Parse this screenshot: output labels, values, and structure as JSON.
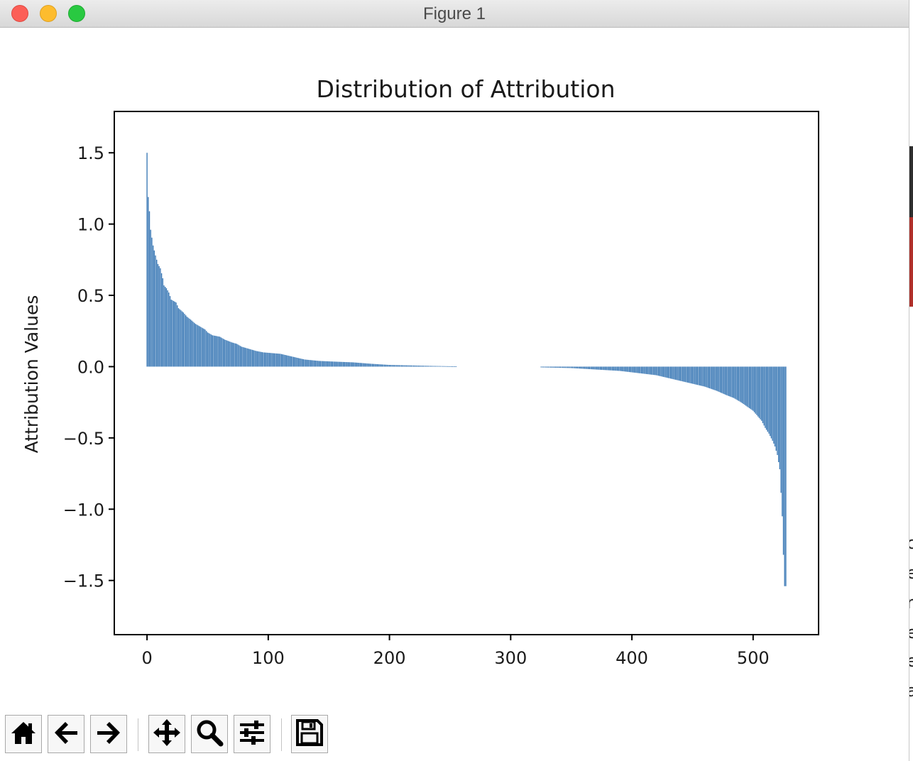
{
  "window": {
    "title": "Figure 1"
  },
  "toolbar": {
    "buttons": [
      {
        "name": "home-button",
        "icon": "home-icon"
      },
      {
        "name": "back-button",
        "icon": "arrow-left-icon"
      },
      {
        "name": "forward-button",
        "icon": "arrow-right-icon"
      },
      {
        "name": "pan-button",
        "icon": "move-icon"
      },
      {
        "name": "zoom-button",
        "icon": "magnifier-icon"
      },
      {
        "name": "configure-subplots-button",
        "icon": "sliders-icon"
      },
      {
        "name": "save-button",
        "icon": "floppy-disk-icon"
      }
    ]
  },
  "behind_window": {
    "visible_chars": [
      "c",
      "e",
      "r",
      "e",
      "e",
      "a"
    ]
  },
  "chart_data": {
    "type": "bar",
    "title": "Distribution of Attribution",
    "xlabel": "",
    "ylabel": "Attribution Values",
    "xlim": [
      -27,
      554
    ],
    "ylim": [
      -1.88,
      1.79
    ],
    "xticks": [
      0,
      100,
      200,
      300,
      400,
      500
    ],
    "yticks": [
      1.5,
      1.0,
      0.5,
      0.0,
      -0.5,
      -1.0,
      -1.5
    ],
    "grid": false,
    "legend": false,
    "bar_color": "#3a78b5",
    "bar_width": 0.8,
    "positive_series": {
      "x_start": 0,
      "x_end": 255,
      "values_at_sample_x": [
        [
          0,
          1.5
        ],
        [
          1,
          1.19
        ],
        [
          2,
          1.09
        ],
        [
          3,
          0.96
        ],
        [
          5,
          0.85
        ],
        [
          7,
          0.78
        ],
        [
          9,
          0.72
        ],
        [
          11,
          0.69
        ],
        [
          13,
          0.62
        ],
        [
          14,
          0.57
        ],
        [
          16,
          0.55
        ],
        [
          18,
          0.52
        ],
        [
          20,
          0.47
        ],
        [
          24,
          0.45
        ],
        [
          26,
          0.41
        ],
        [
          30,
          0.38
        ],
        [
          33,
          0.35
        ],
        [
          36,
          0.33
        ],
        [
          40,
          0.3
        ],
        [
          44,
          0.28
        ],
        [
          48,
          0.26
        ],
        [
          50,
          0.24
        ],
        [
          54,
          0.22
        ],
        [
          60,
          0.21
        ],
        [
          64,
          0.19
        ],
        [
          70,
          0.17
        ],
        [
          74,
          0.16
        ],
        [
          78,
          0.14
        ],
        [
          82,
          0.13
        ],
        [
          86,
          0.12
        ],
        [
          90,
          0.11
        ],
        [
          96,
          0.1
        ],
        [
          110,
          0.09
        ],
        [
          120,
          0.07
        ],
        [
          125,
          0.06
        ],
        [
          130,
          0.05
        ],
        [
          142,
          0.04
        ],
        [
          155,
          0.035
        ],
        [
          170,
          0.03
        ],
        [
          185,
          0.02
        ],
        [
          200,
          0.012
        ],
        [
          220,
          0.008
        ],
        [
          235,
          0.005
        ],
        [
          255,
          0.002
        ]
      ]
    },
    "negative_series": {
      "x_start": 325,
      "x_end": 527,
      "values_at_sample_x": [
        [
          325,
          -0.005
        ],
        [
          340,
          -0.008
        ],
        [
          350,
          -0.01
        ],
        [
          360,
          -0.015
        ],
        [
          370,
          -0.02
        ],
        [
          380,
          -0.025
        ],
        [
          390,
          -0.03
        ],
        [
          400,
          -0.04
        ],
        [
          410,
          -0.05
        ],
        [
          420,
          -0.06
        ],
        [
          430,
          -0.08
        ],
        [
          440,
          -0.1
        ],
        [
          450,
          -0.12
        ],
        [
          460,
          -0.14
        ],
        [
          470,
          -0.17
        ],
        [
          478,
          -0.2
        ],
        [
          484,
          -0.22
        ],
        [
          490,
          -0.25
        ],
        [
          495,
          -0.28
        ],
        [
          500,
          -0.31
        ],
        [
          504,
          -0.35
        ],
        [
          507,
          -0.38
        ],
        [
          510,
          -0.43
        ],
        [
          513,
          -0.47
        ],
        [
          516,
          -0.52
        ],
        [
          518,
          -0.56
        ],
        [
          520,
          -0.62
        ],
        [
          522,
          -0.72
        ],
        [
          524,
          -1.05
        ],
        [
          525,
          -1.32
        ],
        [
          526,
          -1.54
        ]
      ]
    }
  }
}
